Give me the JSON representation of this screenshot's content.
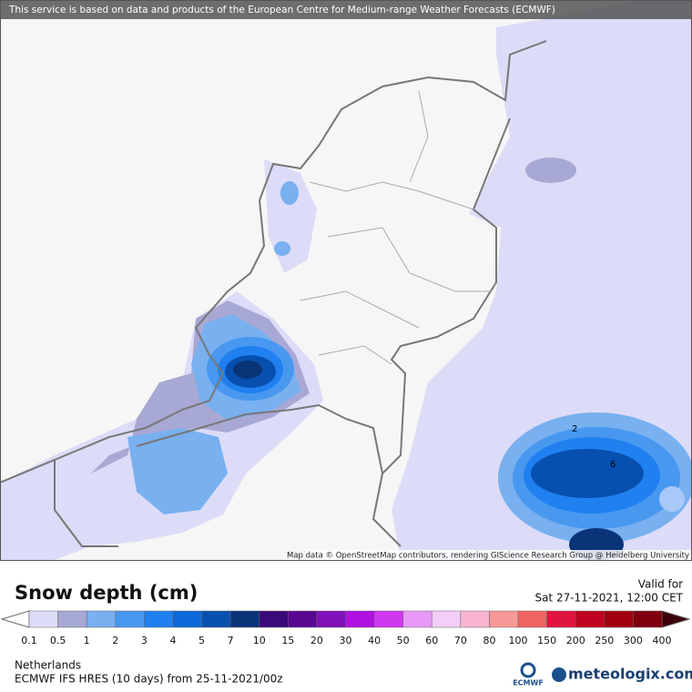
{
  "header": {
    "notice": "This service is based on data and products of the European Centre for Medium-range Weather Forecasts (ECMWF)"
  },
  "map": {
    "attribution": "Map data © OpenStreetMap contributors, rendering GIScience Research Group @ Heidelberg University",
    "contour_labels": [
      2,
      6
    ]
  },
  "footer": {
    "title": "Snow depth (cm)",
    "valid_label": "Valid for",
    "valid_time": "Sat 27-11-2021, 12:00 CET",
    "region": "Netherlands",
    "model": "ECMWF IFS HRES (10 days) from 25-11-2021/00z",
    "ecmwf_logo": "ECMWF",
    "brand": "meteologix.com"
  },
  "legend": {
    "labels": [
      0.1,
      0.5,
      1,
      2,
      3,
      4,
      5,
      7,
      10,
      15,
      20,
      30,
      40,
      50,
      60,
      70,
      80,
      100,
      150,
      200,
      250,
      300,
      400
    ],
    "colors": [
      "#dcdcf8",
      "#a8a8d4",
      "#78b0f0",
      "#4898f0",
      "#2080f0",
      "#0a68d8",
      "#0850b0",
      "#0a3478",
      "#3a0a78",
      "#580890",
      "#8010b8",
      "#b010e0",
      "#d038f0",
      "#e898f8",
      "#f4cdf8",
      "#f8b4d0",
      "#f89898",
      "#f06464",
      "#e01440",
      "#c00020",
      "#a00010",
      "#800010"
    ],
    "under_color": "#ffffff",
    "over_color": "#3c0008"
  }
}
